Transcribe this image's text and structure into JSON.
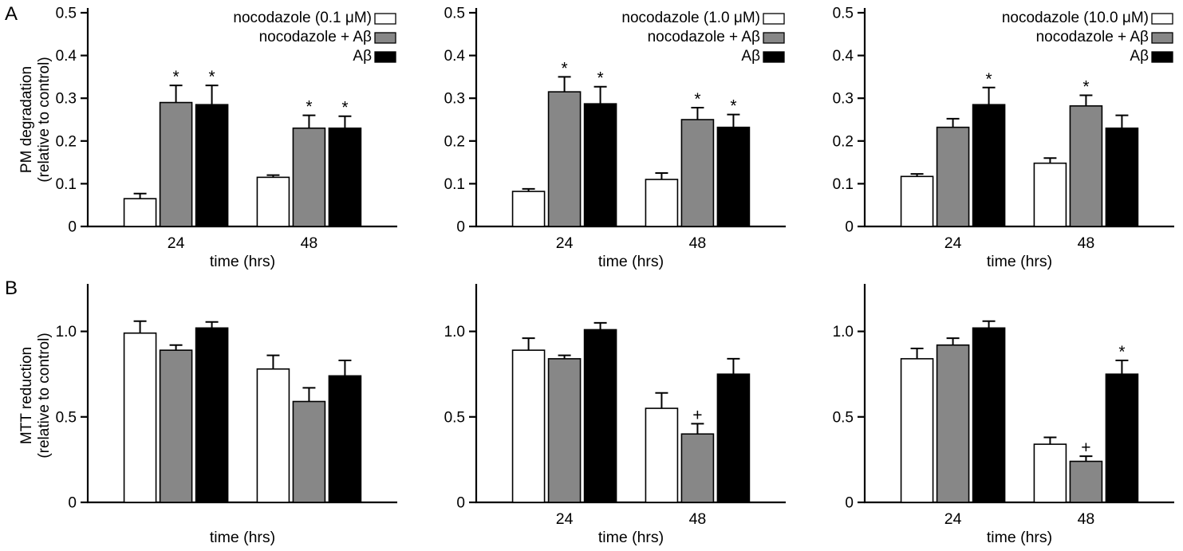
{
  "figure": {
    "panels": [
      {
        "label": "A"
      },
      {
        "label": "B"
      }
    ]
  },
  "colors": {
    "white_bar": "#ffffff",
    "gray_bar": "#878787",
    "black_bar": "#000000",
    "axis": "#000000",
    "background": "#ffffff"
  },
  "chart_data": [
    {
      "type": "bar",
      "panel": "A",
      "ylabel_lines": [
        "PM degradation",
        "(relative to control)"
      ],
      "xlabel": "time (hrs)",
      "ylim": [
        0,
        0.5
      ],
      "yticks": [
        0,
        0.1,
        0.2,
        0.3,
        0.4,
        0.5
      ],
      "ytick_labels": [
        "0",
        "0.1",
        "0.2",
        "0.3",
        "0.4",
        "0.5"
      ],
      "categories": [
        "24",
        "48"
      ],
      "category_labels_visible": true,
      "legend_position": "top-right-inside",
      "grid": false,
      "legend": [
        {
          "label": "nocodazole (0.1 μM)",
          "color_key": "white_bar"
        },
        {
          "label": "nocodazole + Aβ",
          "color_key": "gray_bar"
        },
        {
          "label": "Aβ",
          "color_key": "black_bar"
        }
      ],
      "series": [
        {
          "name": "nocodazole (0.1 μM)",
          "color_key": "white_bar",
          "values": [
            0.065,
            0.115
          ],
          "errors": [
            0.012,
            0.005
          ],
          "annotations": [
            "",
            ""
          ]
        },
        {
          "name": "nocodazole + Aβ",
          "color_key": "gray_bar",
          "values": [
            0.29,
            0.23
          ],
          "errors": [
            0.04,
            0.03
          ],
          "annotations": [
            "*",
            "*"
          ]
        },
        {
          "name": "Aβ",
          "color_key": "black_bar",
          "values": [
            0.285,
            0.23
          ],
          "errors": [
            0.045,
            0.028
          ],
          "annotations": [
            "*",
            "*"
          ]
        }
      ]
    },
    {
      "type": "bar",
      "panel": "A",
      "ylabel_lines": [],
      "xlabel": "time (hrs)",
      "ylim": [
        0,
        0.5
      ],
      "yticks": [
        0,
        0.1,
        0.2,
        0.3,
        0.4,
        0.5
      ],
      "ytick_labels": [
        "0",
        "0.1",
        "0.2",
        "0.3",
        "0.4",
        "0.5"
      ],
      "categories": [
        "24",
        "48"
      ],
      "category_labels_visible": true,
      "legend_position": "top-right-inside",
      "grid": false,
      "legend": [
        {
          "label": "nocodazole (1.0 μM)",
          "color_key": "white_bar"
        },
        {
          "label": "nocodazole + Aβ",
          "color_key": "gray_bar"
        },
        {
          "label": "Aβ",
          "color_key": "black_bar"
        }
      ],
      "series": [
        {
          "name": "nocodazole (1.0 μM)",
          "color_key": "white_bar",
          "values": [
            0.082,
            0.11
          ],
          "errors": [
            0.006,
            0.015
          ],
          "annotations": [
            "",
            ""
          ]
        },
        {
          "name": "nocodazole + Aβ",
          "color_key": "gray_bar",
          "values": [
            0.315,
            0.25
          ],
          "errors": [
            0.035,
            0.028
          ],
          "annotations": [
            "*",
            "*"
          ]
        },
        {
          "name": "Aβ",
          "color_key": "black_bar",
          "values": [
            0.287,
            0.232
          ],
          "errors": [
            0.04,
            0.03
          ],
          "annotations": [
            "*",
            "*"
          ]
        }
      ]
    },
    {
      "type": "bar",
      "panel": "A",
      "ylabel_lines": [],
      "xlabel": "time (hrs)",
      "ylim": [
        0,
        0.5
      ],
      "yticks": [
        0,
        0.1,
        0.2,
        0.3,
        0.4,
        0.5
      ],
      "ytick_labels": [
        "0",
        "0.1",
        "0.2",
        "0.3",
        "0.4",
        "0.5"
      ],
      "categories": [
        "24",
        "48"
      ],
      "category_labels_visible": true,
      "legend_position": "top-right-inside",
      "grid": false,
      "legend": [
        {
          "label": "nocodazole (10.0 μM)",
          "color_key": "white_bar"
        },
        {
          "label": "nocodazole + Aβ",
          "color_key": "gray_bar"
        },
        {
          "label": "Aβ",
          "color_key": "black_bar"
        }
      ],
      "series": [
        {
          "name": "nocodazole (10.0 μM)",
          "color_key": "white_bar",
          "values": [
            0.117,
            0.148
          ],
          "errors": [
            0.006,
            0.012
          ],
          "annotations": [
            "",
            ""
          ]
        },
        {
          "name": "nocodazole + Aβ",
          "color_key": "gray_bar",
          "values": [
            0.232,
            0.282
          ],
          "errors": [
            0.02,
            0.025
          ],
          "annotations": [
            "",
            "*"
          ]
        },
        {
          "name": "Aβ",
          "color_key": "black_bar",
          "values": [
            0.285,
            0.23
          ],
          "errors": [
            0.04,
            0.03
          ],
          "annotations": [
            "*",
            ""
          ]
        }
      ]
    },
    {
      "type": "bar",
      "panel": "B",
      "ylabel_lines": [
        "MTT reduction",
        "(relative to control)"
      ],
      "xlabel": "time (hrs)",
      "ylim": [
        0,
        1.25
      ],
      "yticks": [
        0,
        0.5,
        1.0
      ],
      "ytick_labels": [
        "0",
        "0.5",
        "1.0"
      ],
      "categories": [
        "24",
        "48"
      ],
      "category_labels_visible": false,
      "legend_position": "none",
      "grid": false,
      "legend": [],
      "series": [
        {
          "name": "nocodazole (0.1 μM)",
          "color_key": "white_bar",
          "values": [
            0.99,
            0.78
          ],
          "errors": [
            0.07,
            0.08
          ],
          "annotations": [
            "",
            ""
          ]
        },
        {
          "name": "nocodazole + Aβ",
          "color_key": "gray_bar",
          "values": [
            0.89,
            0.59
          ],
          "errors": [
            0.03,
            0.08
          ],
          "annotations": [
            "",
            ""
          ]
        },
        {
          "name": "Aβ",
          "color_key": "black_bar",
          "values": [
            1.02,
            0.74
          ],
          "errors": [
            0.035,
            0.09
          ],
          "annotations": [
            "",
            ""
          ]
        }
      ]
    },
    {
      "type": "bar",
      "panel": "B",
      "ylabel_lines": [],
      "xlabel": "time (hrs)",
      "ylim": [
        0,
        1.25
      ],
      "yticks": [
        0,
        0.5,
        1.0
      ],
      "ytick_labels": [
        "0",
        "0.5",
        "1.0"
      ],
      "categories": [
        "24",
        "48"
      ],
      "category_labels_visible": true,
      "legend_position": "none",
      "grid": false,
      "legend": [],
      "series": [
        {
          "name": "nocodazole (1.0 μM)",
          "color_key": "white_bar",
          "values": [
            0.89,
            0.55
          ],
          "errors": [
            0.07,
            0.09
          ],
          "annotations": [
            "",
            ""
          ]
        },
        {
          "name": "nocodazole + Aβ",
          "color_key": "gray_bar",
          "values": [
            0.84,
            0.4
          ],
          "errors": [
            0.02,
            0.06
          ],
          "annotations": [
            "",
            "+"
          ]
        },
        {
          "name": "Aβ",
          "color_key": "black_bar",
          "values": [
            1.01,
            0.75
          ],
          "errors": [
            0.04,
            0.09
          ],
          "annotations": [
            "",
            ""
          ]
        }
      ]
    },
    {
      "type": "bar",
      "panel": "B",
      "ylabel_lines": [],
      "xlabel": "time (hrs)",
      "ylim": [
        0,
        1.25
      ],
      "yticks": [
        0,
        0.5,
        1.0
      ],
      "ytick_labels": [
        "0",
        "0.5",
        "1.0"
      ],
      "categories": [
        "24",
        "48"
      ],
      "category_labels_visible": true,
      "legend_position": "none",
      "grid": false,
      "legend": [],
      "series": [
        {
          "name": "nocodazole (10.0 μM)",
          "color_key": "white_bar",
          "values": [
            0.84,
            0.34
          ],
          "errors": [
            0.06,
            0.04
          ],
          "annotations": [
            "",
            ""
          ]
        },
        {
          "name": "nocodazole + Aβ",
          "color_key": "gray_bar",
          "values": [
            0.92,
            0.24
          ],
          "errors": [
            0.04,
            0.03
          ],
          "annotations": [
            "",
            "+"
          ]
        },
        {
          "name": "Aβ",
          "color_key": "black_bar",
          "values": [
            1.02,
            0.75
          ],
          "errors": [
            0.04,
            0.08
          ],
          "annotations": [
            "",
            "*"
          ]
        }
      ]
    }
  ]
}
